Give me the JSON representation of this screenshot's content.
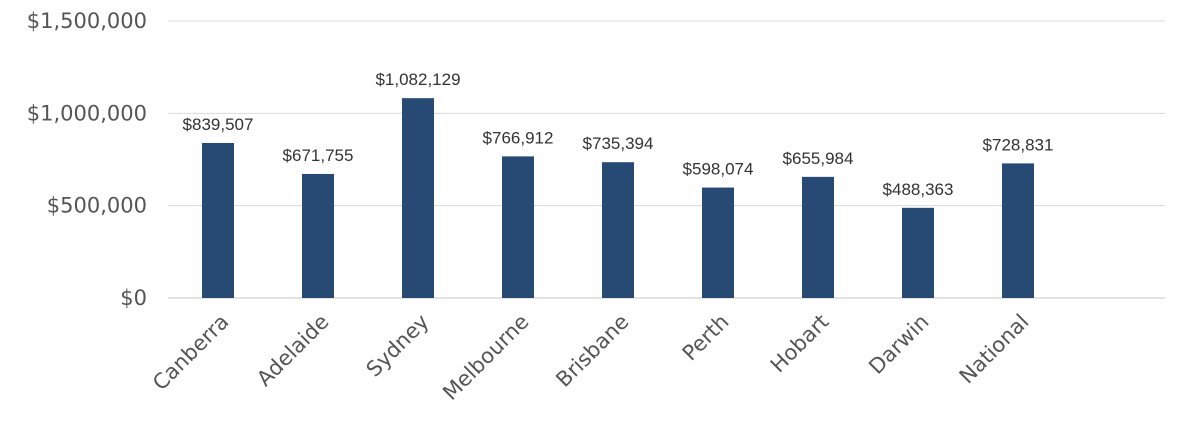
{
  "chart_data": {
    "type": "bar",
    "categories": [
      "Canberra",
      "Adelaide",
      "Sydney",
      "Melbourne",
      "Brisbane",
      "Perth",
      "Hobart",
      "Darwin",
      "National"
    ],
    "values": [
      839507,
      671755,
      1082129,
      766912,
      735394,
      598074,
      655984,
      488363,
      728831
    ],
    "data_labels": [
      "$839,507",
      "$671,755",
      "$1,082,129",
      "$766,912",
      "$735,394",
      "$598,074",
      "$655,984",
      "$488,363",
      "$728,831"
    ],
    "y_ticks": [
      0,
      500000,
      1000000,
      1500000
    ],
    "y_tick_labels": [
      "$0",
      "$500,000",
      "$1,000,000",
      "$1,500,000"
    ],
    "ylim": [
      0,
      1500000
    ],
    "title": "",
    "xlabel": "",
    "ylabel": "",
    "grid": true,
    "legend": "none",
    "bar_color": "#264a73",
    "grid_color": "#d9d9d9"
  }
}
